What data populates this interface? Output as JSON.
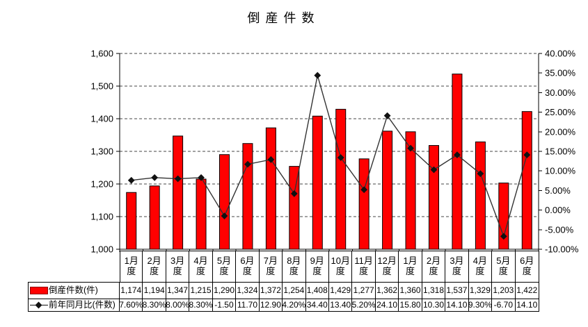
{
  "title": "倒産件数",
  "colors": {
    "bar_fill": "#ff0000",
    "bar_border": "#000000",
    "line": "#333333",
    "marker": "#111111",
    "grid": "#444444",
    "axis": "#000000",
    "table_border": "#000000",
    "background": "#ffffff",
    "text": "#000000"
  },
  "chart_data": {
    "type": "bar+line",
    "title": "倒産件数",
    "legend_position": "data-table-left-column",
    "grid": "horizontal dashed at left-axis 100 steps",
    "categories": [
      "1月度",
      "2月度",
      "3月度",
      "4月度",
      "5月度",
      "6月度",
      "7月度",
      "8月度",
      "9月度",
      "10月度",
      "11月度",
      "12月度",
      "1月度",
      "2月度",
      "3月度",
      "4月度",
      "5月度",
      "6月度"
    ],
    "series": [
      {
        "name": "倒産件数(件)",
        "type": "bar",
        "axis": "left",
        "values": [
          1174,
          1194,
          1347,
          1215,
          1290,
          1324,
          1372,
          1254,
          1408,
          1429,
          1277,
          1362,
          1360,
          1318,
          1537,
          1329,
          1203,
          1422
        ],
        "display": [
          "1,174",
          "1,194",
          "1,347",
          "1,215",
          "1,290",
          "1,324",
          "1,372",
          "1,254",
          "1,408",
          "1,429",
          "1,277",
          "1,362",
          "1,360",
          "1,318",
          "1,537",
          "1,329",
          "1,203",
          "1,422"
        ]
      },
      {
        "name": "前年同月比(件数)",
        "type": "line",
        "axis": "right",
        "marker": "diamond",
        "values": [
          7.6,
          8.3,
          8.0,
          8.3,
          -1.5,
          11.7,
          12.9,
          4.2,
          34.4,
          13.4,
          5.2,
          24.1,
          15.8,
          10.3,
          14.1,
          9.3,
          -6.7,
          14.1
        ],
        "display": [
          "7.60%",
          "8.30%",
          "8.00%",
          "8.30%",
          "-1.50",
          "11.70",
          "12.90",
          "4.20%",
          "34.40",
          "13.40",
          "5.20%",
          "24.10",
          "15.80",
          "10.30",
          "14.10",
          "9.30%",
          "-6.70",
          "14.10"
        ]
      }
    ],
    "left_axis": {
      "min": 1000,
      "max": 1600,
      "step": 100,
      "tick_labels": [
        "1,600",
        "1,500",
        "1,400",
        "1,300",
        "1,200",
        "1,100",
        "1,000"
      ]
    },
    "right_axis": {
      "min": -10,
      "max": 40,
      "step": 5,
      "tick_labels": [
        "40.00%",
        "35.00%",
        "30.00%",
        "25.00%",
        "20.00%",
        "15.00%",
        "10.00%",
        "5.00%",
        "0.00%",
        "-5.00%",
        "-10.00%"
      ]
    }
  }
}
